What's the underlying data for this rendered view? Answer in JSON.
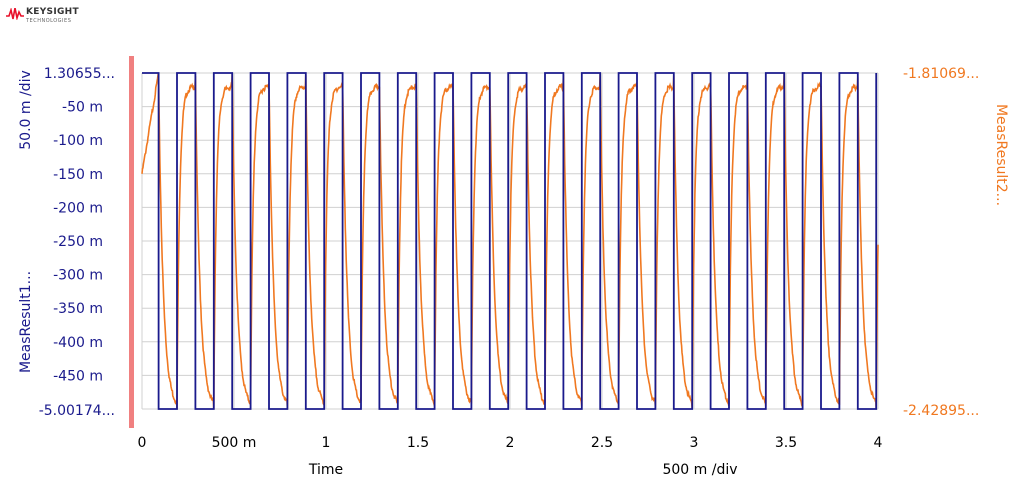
{
  "logo": {
    "name": "KEYSIGHT",
    "sub": "TECHNOLOGIES",
    "icon": "keysight-wave-icon"
  },
  "colors": {
    "series1": "#1a1a8c",
    "series2": "#f07820",
    "left_axis": "#1a1a8c",
    "right_axis": "#f07820",
    "grid": "#d0d0d0",
    "cursor_bar": "#f08080"
  },
  "chart_data": {
    "type": "line",
    "xlabel": "Time",
    "xscale_label": "500 m /div",
    "xlim": [
      0,
      4
    ],
    "x_ticks": [
      "0",
      "500 m",
      "1",
      "1.5",
      "2",
      "2.5",
      "3",
      "3.5",
      "4"
    ],
    "grid": true,
    "left_axis": {
      "label": "MeasResult1...",
      "scale_label": "50.0 m /div",
      "top_label": "1.30655...",
      "bottom_label": "-5.00174...",
      "ticks": [
        "-50 m",
        "-100 m",
        "-150 m",
        "-200 m",
        "-250 m",
        "-300 m",
        "-350 m",
        "-400 m",
        "-450 m"
      ]
    },
    "right_axis": {
      "label": "MeasResult2...",
      "top_label": "-1.81069...",
      "bottom_label": "-2.42895..."
    },
    "series": [
      {
        "name": "MeasResult1...",
        "axis": "left",
        "shape": "square",
        "period": 0.2,
        "duty": 0.5,
        "high": 1.30655,
        "low": -5.00174,
        "first_rise": 0.0,
        "first_fall": 0.09
      },
      {
        "name": "MeasResult2...",
        "axis": "right",
        "shape": "rc-response",
        "period": 0.2,
        "high": -1.81069,
        "low": -2.42895
      }
    ]
  }
}
